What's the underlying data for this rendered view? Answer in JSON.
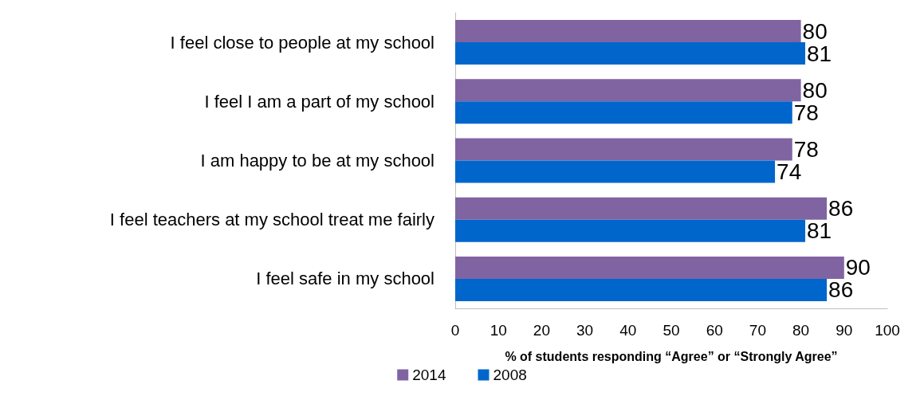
{
  "chart_data": {
    "type": "bar",
    "orientation": "horizontal",
    "xlabel": "% of students responding “Agree” or “Strongly Agree”",
    "categories": [
      "I feel close to people at my school",
      "I feel I am a part of my school",
      "I am happy to be at my school",
      "I feel teachers at my school treat me fairly",
      "I feel safe in my school"
    ],
    "series": [
      {
        "name": "2014",
        "color": "#8064a2",
        "values": [
          80,
          80,
          78,
          86,
          90
        ]
      },
      {
        "name": "2008",
        "color": "#0066cc",
        "values": [
          81,
          78,
          74,
          81,
          86
        ]
      }
    ],
    "xlim": [
      0,
      100
    ],
    "xticks": [
      0,
      10,
      20,
      30,
      40,
      50,
      60,
      70,
      80,
      90,
      100
    ],
    "grid": false,
    "legend": "bottom",
    "data_labels": true
  }
}
